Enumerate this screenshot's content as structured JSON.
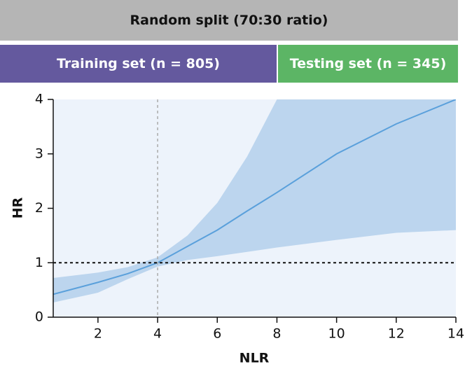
{
  "header": {
    "title": "Random split (70:30 ratio)",
    "training": "Training set (n = 805)",
    "testing": "Testing set (n = 345)"
  },
  "chart_data": {
    "type": "line",
    "x_label": "NLR",
    "y_label": "HR",
    "x": [
      0.5,
      2,
      3,
      4,
      5,
      6,
      7,
      8,
      10,
      12,
      14
    ],
    "values": [
      0.42,
      0.64,
      0.8,
      1.0,
      1.3,
      1.6,
      1.95,
      2.29,
      3.0,
      3.55,
      4.0
    ],
    "lower": [
      0.27,
      0.45,
      0.7,
      0.93,
      1.05,
      1.12,
      1.2,
      1.28,
      1.42,
      1.55,
      1.6
    ],
    "upper": [
      0.72,
      0.82,
      0.92,
      1.1,
      1.5,
      2.1,
      2.95,
      4.0,
      4.0,
      4.0,
      4.0
    ],
    "color": "#5aa0db",
    "band_color": "#bcd5ee",
    "background": "#edf3fb",
    "xlim": [
      0.5,
      14
    ],
    "ylim": [
      0,
      4
    ],
    "xticks": [
      2,
      4,
      6,
      8,
      10,
      12,
      14
    ],
    "yticks": [
      0,
      1,
      2,
      3,
      4
    ],
    "hline": 1,
    "vline": 4
  }
}
